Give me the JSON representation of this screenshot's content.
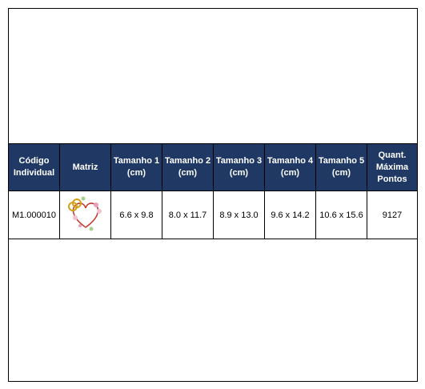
{
  "table": {
    "header": [
      "Código Individual",
      "Matriz",
      "Tamanho 1 (cm)",
      "Tamanho 2 (cm)",
      "Tamanho 3 (cm)",
      "Tamanho 4 (cm)",
      "Tamanho 5 (cm)",
      "Quant. Máxima Pontos"
    ],
    "rows": [
      {
        "code": "M1.000010",
        "sizes": [
          "6.6 x 9.8",
          "8.0 x 11.7",
          "8.9 x 13.0",
          "9.6 x 14.2",
          "10.6 x 15.6"
        ],
        "points": "9127"
      }
    ]
  }
}
